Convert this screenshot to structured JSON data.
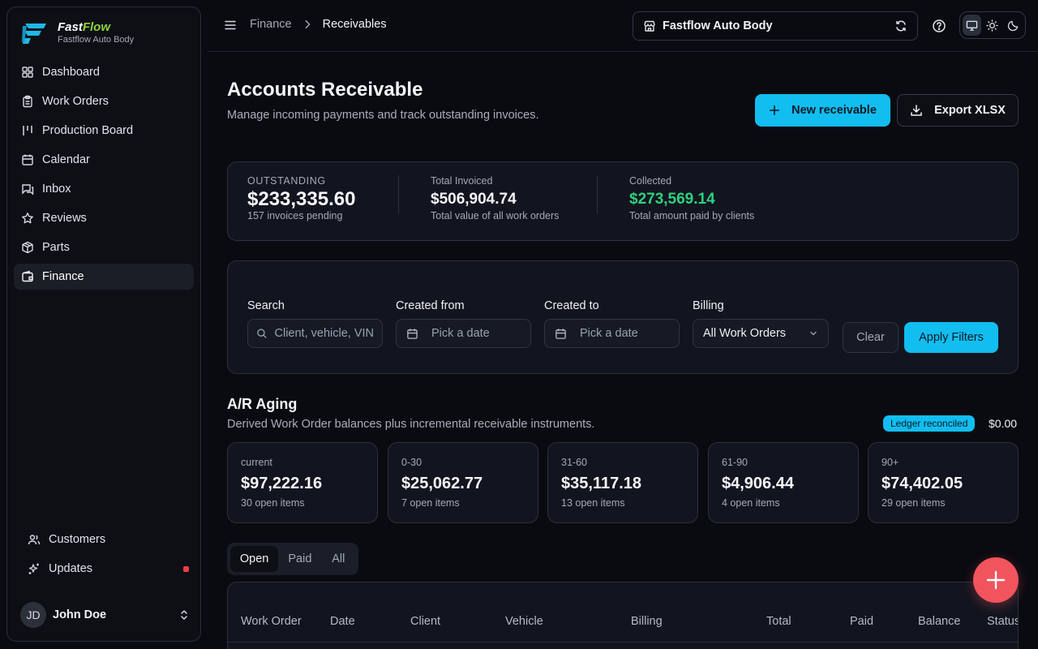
{
  "brand": {
    "name_part1": "Fast",
    "name_part2": "Flow",
    "subtitle": "Fastflow Auto Body",
    "accent_color": "#8bd33a"
  },
  "sidebar": {
    "items": [
      {
        "label": "Dashboard",
        "icon": "grid-icon"
      },
      {
        "label": "Work Orders",
        "icon": "clipboard-icon"
      },
      {
        "label": "Production Board",
        "icon": "kanban-icon"
      },
      {
        "label": "Calendar",
        "icon": "calendar-icon"
      },
      {
        "label": "Inbox",
        "icon": "inbox-icon"
      },
      {
        "label": "Reviews",
        "icon": "star-icon"
      },
      {
        "label": "Parts",
        "icon": "package-icon"
      },
      {
        "label": "Finance",
        "icon": "wallet-icon",
        "active": true
      }
    ],
    "bottom_items": [
      {
        "label": "Customers",
        "icon": "users-icon"
      },
      {
        "label": "Updates",
        "icon": "sparkles-icon",
        "notification_dot": true
      }
    ],
    "user": {
      "initials": "JD",
      "name": "John Doe"
    }
  },
  "topbar": {
    "breadcrumb": [
      "Finance",
      "Receivables"
    ],
    "shop_name": "Fastflow Auto Body",
    "theme_options": [
      "system",
      "light",
      "dark"
    ],
    "theme_selected": "system"
  },
  "page": {
    "title": "Accounts Receivable",
    "subtitle": "Manage incoming payments and track outstanding invoices.",
    "new_button": "New receivable",
    "export_button": "Export XLSX",
    "primary_color": "#12bdf0"
  },
  "stats": {
    "outstanding": {
      "label": "OUTSTANDING",
      "value": "$233,335.60",
      "note": "157 invoices pending"
    },
    "invoiced": {
      "label": "Total Invoiced",
      "value": "$506,904.74",
      "note": "Total value of all work orders"
    },
    "collected": {
      "label": "Collected",
      "value": "$273,569.14",
      "note": "Total amount paid by clients",
      "color": "#2fd07f"
    }
  },
  "filters": {
    "search_label": "Search",
    "search_placeholder": "Client, vehicle, VIN",
    "from_label": "Created from",
    "from_placeholder": "Pick a date",
    "to_label": "Created to",
    "to_placeholder": "Pick a date",
    "billing_label": "Billing",
    "billing_value": "All Work Orders",
    "clear_button": "Clear",
    "apply_button": "Apply Filters"
  },
  "aging": {
    "title": "A/R Aging",
    "subtitle": "Derived Work Order balances plus incremental receivable instruments.",
    "badge": "Ledger reconciled",
    "badge_value": "$0.00",
    "buckets": [
      {
        "label": "current",
        "value": "$97,222.16",
        "note": "30 open items"
      },
      {
        "label": "0-30",
        "value": "$25,062.77",
        "note": "7 open items"
      },
      {
        "label": "31-60",
        "value": "$35,117.18",
        "note": "13 open items"
      },
      {
        "label": "61-90",
        "value": "$4,906.44",
        "note": "4 open items"
      },
      {
        "label": "90+",
        "value": "$74,402.05",
        "note": "29 open items"
      }
    ]
  },
  "tabs": {
    "items": [
      "Open",
      "Paid",
      "All"
    ],
    "selected": "Open"
  },
  "table": {
    "columns": [
      "Work Order",
      "Date",
      "Client",
      "Vehicle",
      "Billing",
      "Total",
      "Paid",
      "Balance",
      "Status"
    ]
  },
  "fab": {
    "icon": "plus-icon",
    "color": "#f1545d"
  }
}
